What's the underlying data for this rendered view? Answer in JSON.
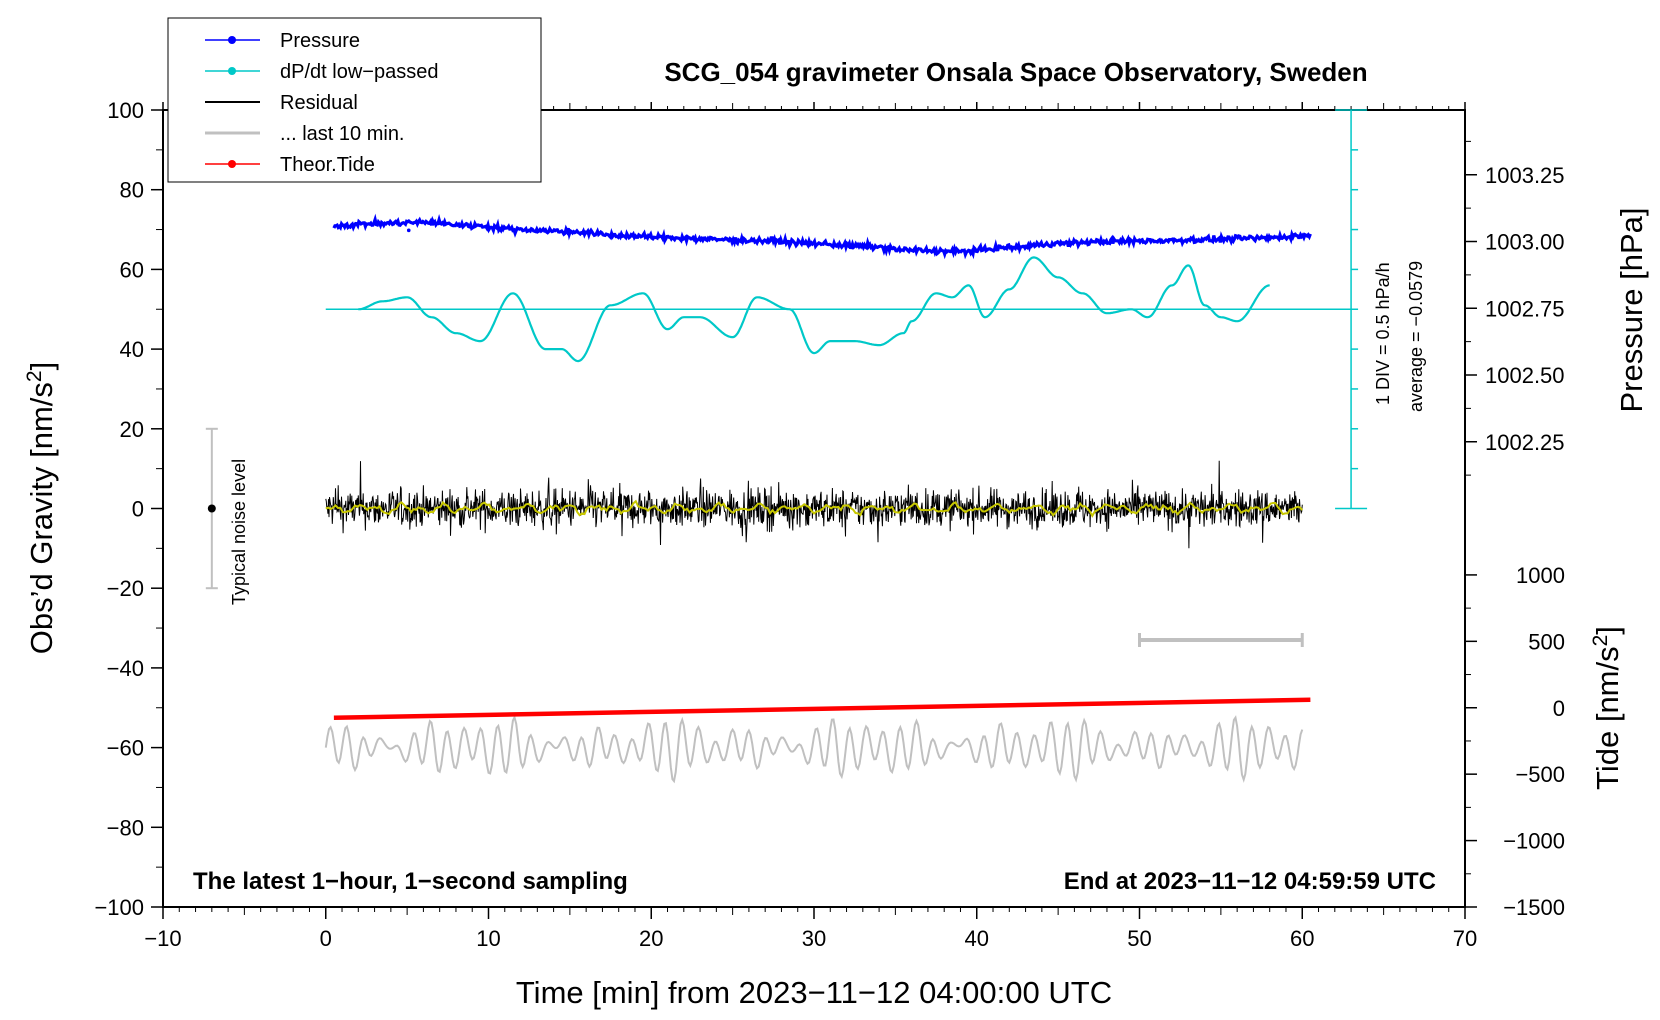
{
  "chart_data": {
    "type": "line",
    "title": "SCG_054 gravimeter Onsala Space Observatory, Sweden",
    "xlabel": "Time [min] from 2023−11−12 04:00:00 UTC",
    "ylabel_left": "Obs’d Gravity [nm/s",
    "ylabel_left_sup": "2",
    "ylabel_left_end": "]",
    "ylabel_right_top": "Pressure [hPa]",
    "ylabel_right_bottom": "Tide [nm/s",
    "ylabel_right_bottom_sup": "2",
    "ylabel_right_bottom_end": "]",
    "xlim": [
      -10,
      70
    ],
    "ylim": [
      -100,
      100
    ],
    "x_ticks": [
      -10,
      0,
      10,
      20,
      30,
      40,
      50,
      60,
      70
    ],
    "x_tick_labels": [
      "−10",
      "0",
      "10",
      "20",
      "30",
      "40",
      "50",
      "60",
      "70"
    ],
    "y_ticks": [
      100,
      80,
      60,
      40,
      20,
      0,
      -20,
      -40,
      -60,
      -80,
      -100
    ],
    "y_tick_labels": [
      "100",
      "80",
      "60",
      "40",
      "20",
      "0",
      "−20",
      "−40",
      "−60",
      "−80",
      "−100"
    ],
    "pressure_axis": {
      "ticks": [
        1003.25,
        1003.0,
        1002.75,
        1002.5,
        1002.25
      ],
      "tick_labels": [
        "1003.25",
        "1003.00",
        "1002.75",
        "1002.50",
        "1002.25"
      ],
      "gravity_at_1003": 67,
      "gravity_per_hpa": 67
    },
    "tide_axis": {
      "ticks": [
        1000,
        500,
        0,
        -500,
        -1000,
        -1500
      ],
      "tick_labels": [
        "1000",
        "500",
        "0",
        "−500",
        "−1000",
        "−1500"
      ],
      "gravity_at_0": -50,
      "gravity_per_unit": 0.033333
    },
    "legend": [
      {
        "label": "Pressure",
        "color": "#0000ff",
        "marker": true
      },
      {
        "label": "dP/dt low−passed",
        "color": "#00c8c8",
        "marker": true
      },
      {
        "label": "Residual",
        "color": "#000000",
        "marker": false
      },
      {
        "label": "... last 10 min.",
        "color": "#c0c0c0",
        "marker": false
      },
      {
        "label": "Theor.Tide",
        "color": "#ff0000",
        "marker": true
      }
    ],
    "series": [
      {
        "name": "Pressure",
        "color": "#0000ff",
        "x": [
          0.5,
          3,
          6,
          9,
          12,
          15,
          18,
          21,
          24,
          27,
          30,
          33,
          36,
          39,
          42,
          45,
          48,
          51,
          54,
          57,
          60.5
        ],
        "values": [
          71,
          71.5,
          71.8,
          71,
          70,
          69.5,
          68.5,
          68,
          67.5,
          67.2,
          66.5,
          65.8,
          64.8,
          64.5,
          65.5,
          66.5,
          67,
          67.2,
          67.5,
          67.8,
          68.5
        ]
      },
      {
        "name": "dP/dt low−passed",
        "color": "#00c8c8",
        "baseline": 50,
        "x": [
          2,
          3.5,
          5,
          6.5,
          8,
          9.5,
          11.5,
          13.5,
          14.5,
          15.5,
          17.5,
          19.5,
          21,
          22,
          23,
          25,
          26.5,
          28.5,
          30,
          31,
          32.5,
          34,
          35.5,
          36,
          37.5,
          38.5,
          39.5,
          40.5,
          42,
          43.5,
          45,
          46.5,
          48,
          49.5,
          50.5,
          52,
          53,
          54,
          55,
          56,
          58
        ],
        "values": [
          50,
          52,
          53,
          48,
          44,
          42,
          54,
          40,
          40,
          37,
          51,
          54,
          45,
          48,
          48,
          43,
          53,
          50,
          39,
          42,
          42,
          41,
          44,
          47,
          54,
          53,
          56,
          48,
          55,
          63,
          58,
          54,
          49,
          50,
          48,
          56,
          61,
          51,
          48,
          47,
          56
        ]
      },
      {
        "name": "Residual",
        "color": "#000000",
        "x_start": 0,
        "x_end": 60,
        "typical_range": [
          -8,
          8
        ],
        "peak_range": [
          -10,
          12
        ]
      },
      {
        "name": "Residual smoothed",
        "color": "#c8c800",
        "x_start": 0,
        "x_end": 60,
        "typical_range": [
          -2,
          2
        ]
      },
      {
        "name": "... last 10 min.",
        "color": "#c0c0c0",
        "center": -60,
        "typical_range": [
          -68,
          -53
        ],
        "x_start": 0,
        "x_end": 60
      },
      {
        "name": "Theor.Tide",
        "color": "#ff0000",
        "x": [
          0.5,
          60.5
        ],
        "values": [
          -52.5,
          -48
        ]
      }
    ],
    "annotations": {
      "noise_label": "Typical noise level",
      "noise_center": 0,
      "noise_range": [
        -20,
        20
      ],
      "noise_x": -7,
      "last10_bar_x": [
        50,
        60
      ],
      "last10_bar_y": -33,
      "pressure_scale_label": "1 DIV = 0.5 hPa/h",
      "average_label": "average = −0.0579",
      "pressure_scale_x": 63,
      "pressure_scale_range": [
        0,
        100
      ],
      "note_left": "The latest 1−hour, 1−second sampling",
      "note_right": "End at 2023−11−12 04:59:59 UTC"
    }
  }
}
